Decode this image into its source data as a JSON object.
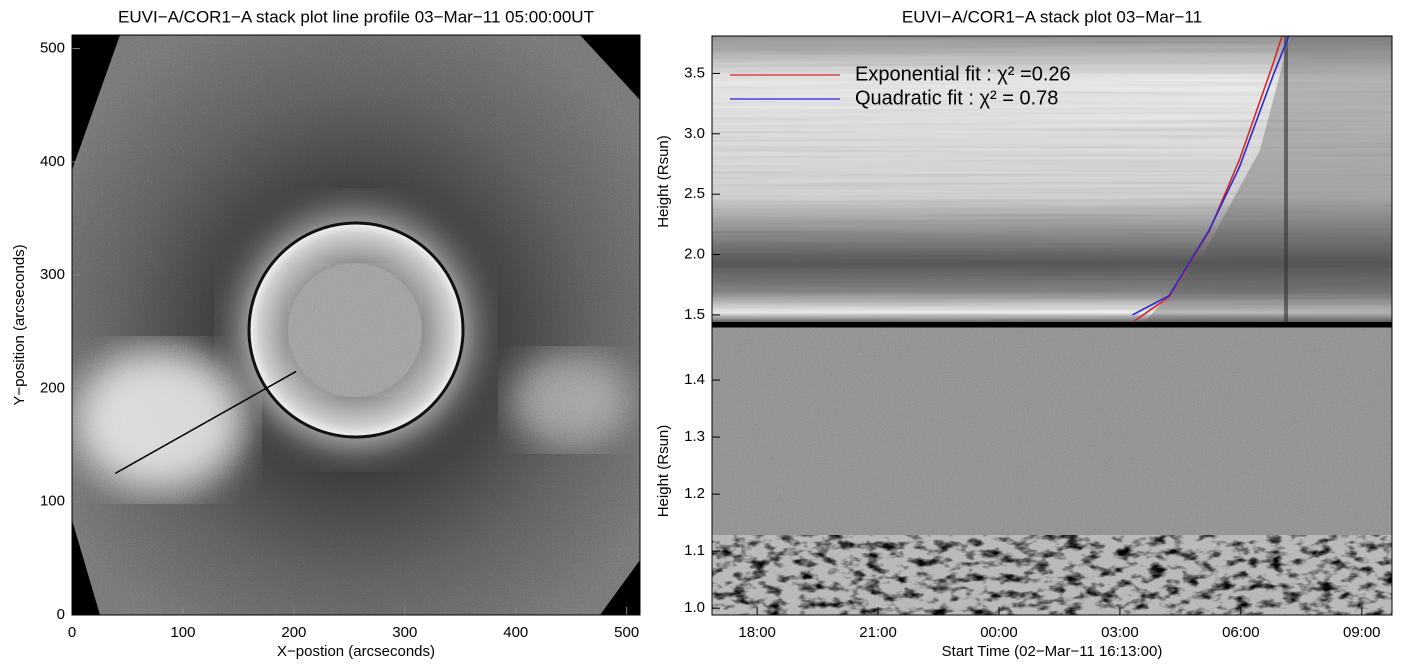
{
  "chart_data": [
    {
      "type": "image",
      "title": "EUVI−A/COR1−A stack plot line profile 03−Mar−11 05:00:00UT",
      "xlabel": "X−postion (arcseconds)",
      "ylabel": "Y−position (arcseconds)",
      "xlim": [
        0,
        512
      ],
      "ylim": [
        0,
        512
      ],
      "xticks": [
        0,
        100,
        200,
        300,
        400,
        500
      ],
      "yticks": [
        0,
        100,
        200,
        300,
        400,
        500
      ],
      "line_profile": {
        "x": [
          39,
          202
        ],
        "y": [
          125,
          215
        ],
        "color": "#000000"
      }
    },
    {
      "type": "line",
      "title": "EUVI−A/COR1−A stack plot 03−Mar−11",
      "ylabel": "Height (Rsun)",
      "xlim": [
        16.88,
        33.75
      ],
      "ylim": [
        1.4,
        3.81
      ],
      "yticks": [
        1.5,
        {
          "value": 2,
          "label": "2.0"
        },
        2.5,
        {
          "value": 3,
          "label": "3.0"
        },
        3.5
      ],
      "legend": "upper left",
      "series": [
        {
          "name": "Exponential fit : χ² =0.26",
          "color": "#d62728",
          "x": [
            27.36,
            28.22,
            29.21,
            29.96,
            30.82,
            31.02
          ],
          "values": [
            1.45,
            1.65,
            2.19,
            2.78,
            3.6,
            3.81
          ]
        },
        {
          "name": "Quadratic fit : χ² = 0.78",
          "color": "#2a2ad0",
          "x": [
            27.31,
            28.22,
            29.21,
            29.96,
            30.82,
            31.19
          ],
          "values": [
            1.5,
            1.66,
            2.2,
            2.72,
            3.5,
            3.81
          ]
        }
      ]
    },
    {
      "type": "image",
      "xlabel": "Start Time (02−Mar−11 16:13:00)",
      "ylabel": "Height (Rsun)",
      "xlim": [
        16.88,
        33.75
      ],
      "ylim": [
        0.988,
        1.493
      ],
      "xticks": [
        {
          "value": 18,
          "label": "18:00"
        },
        {
          "value": 21,
          "label": "21:00"
        },
        {
          "value": 24,
          "label": "00:00"
        },
        {
          "value": 27,
          "label": "03:00"
        },
        {
          "value": 30,
          "label": "06:00"
        },
        {
          "value": 33,
          "label": "09:00"
        }
      ],
      "yticks": [
        {
          "value": 1,
          "label": "1.0"
        },
        1.1,
        1.2,
        1.3,
        1.4
      ]
    }
  ]
}
